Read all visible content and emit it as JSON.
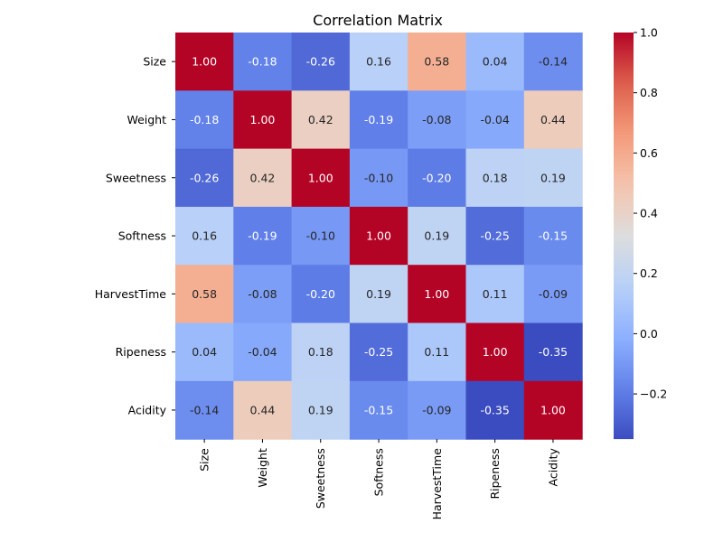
{
  "chart_data": {
    "type": "heatmap",
    "title": "Correlation Matrix",
    "xlabel": "",
    "ylabel": "",
    "labels": [
      "Size",
      "Weight",
      "Sweetness",
      "Softness",
      "HarvestTime",
      "Ripeness",
      "Acidity"
    ],
    "matrix": [
      [
        1.0,
        -0.18,
        -0.26,
        0.16,
        0.58,
        0.04,
        -0.14
      ],
      [
        -0.18,
        1.0,
        0.42,
        -0.19,
        -0.08,
        -0.04,
        0.44
      ],
      [
        -0.26,
        0.42,
        1.0,
        -0.1,
        -0.2,
        0.18,
        0.19
      ],
      [
        0.16,
        -0.19,
        -0.1,
        1.0,
        0.19,
        -0.25,
        -0.15
      ],
      [
        0.58,
        -0.08,
        -0.2,
        0.19,
        1.0,
        0.11,
        -0.09
      ],
      [
        0.04,
        -0.04,
        0.18,
        -0.25,
        0.11,
        1.0,
        -0.35
      ],
      [
        -0.14,
        0.44,
        0.19,
        -0.15,
        -0.09,
        -0.35,
        1.0
      ]
    ],
    "cell_labels": [
      [
        "1.00",
        "-0.18",
        "-0.26",
        "0.16",
        "0.58",
        "0.04",
        "-0.14"
      ],
      [
        "-0.18",
        "1.00",
        "0.42",
        "-0.19",
        "-0.08",
        "-0.04",
        "0.44"
      ],
      [
        "-0.26",
        "0.42",
        "1.00",
        "-0.10",
        "-0.20",
        "0.18",
        "0.19"
      ],
      [
        "0.16",
        "-0.19",
        "-0.10",
        "1.00",
        "0.19",
        "-0.25",
        "-0.15"
      ],
      [
        "0.58",
        "-0.08",
        "-0.20",
        "0.19",
        "1.00",
        "0.11",
        "-0.09"
      ],
      [
        "0.04",
        "-0.04",
        "0.18",
        "-0.25",
        "0.11",
        "1.00",
        "-0.35"
      ],
      [
        "-0.14",
        "0.44",
        "0.19",
        "-0.15",
        "-0.09",
        "-0.35",
        "1.00"
      ]
    ],
    "colormap": "coolwarm",
    "colorbar": {
      "range": [
        -0.35,
        1.0
      ],
      "ticks": [
        -0.2,
        0.0,
        0.2,
        0.4,
        0.6,
        0.8,
        1.0
      ],
      "tick_labels": [
        "−0.2",
        "0.0",
        "0.2",
        "0.4",
        "0.6",
        "0.8",
        "1.0"
      ]
    },
    "grid": false,
    "legend": "colorbar-right"
  }
}
